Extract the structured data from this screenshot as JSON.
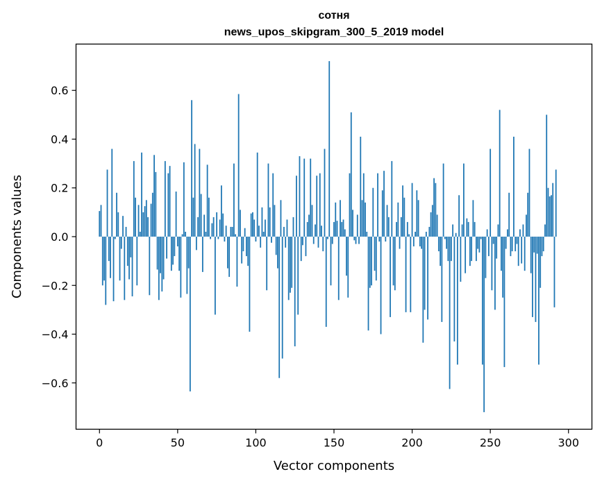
{
  "chart_data": {
    "type": "bar",
    "title": "сотня",
    "subtitle": "news_upos_skipgram_300_5_2019 model",
    "xlabel": "Vector components",
    "ylabel": "Components values",
    "xlim": [
      -15,
      315
    ],
    "ylim": [
      -0.79,
      0.79
    ],
    "xticks": [
      0,
      50,
      100,
      150,
      200,
      250,
      300
    ],
    "yticks": [
      -0.6,
      -0.4,
      -0.2,
      0.0,
      0.2,
      0.4,
      0.6
    ],
    "ytick_labels": [
      "−0.6",
      "−0.4",
      "−0.2",
      "0.0",
      "0.2",
      "0.4",
      "0.6"
    ],
    "bar_color": "#1f77b4",
    "grid": false,
    "values": [
      0.105,
      0.13,
      -0.2,
      -0.18,
      -0.28,
      0.275,
      -0.1,
      -0.17,
      0.36,
      -0.265,
      -0.01,
      0.18,
      0.1,
      -0.18,
      -0.05,
      0.085,
      -0.26,
      0.04,
      -0.12,
      -0.175,
      -0.085,
      -0.245,
      0.31,
      0.16,
      -0.2,
      0.13,
      0.02,
      0.345,
      0.1,
      0.125,
      0.15,
      0.08,
      -0.24,
      0.135,
      0.18,
      0.335,
      0.265,
      -0.135,
      -0.26,
      -0.15,
      -0.225,
      -0.175,
      0.31,
      -0.09,
      0.26,
      0.29,
      -0.14,
      -0.115,
      -0.08,
      0.185,
      -0.04,
      -0.14,
      -0.25,
      0.01,
      0.305,
      0.02,
      -0.235,
      -0.13,
      -0.635,
      0.56,
      0.16,
      0.38,
      -0.055,
      0.08,
      0.36,
      0.175,
      -0.145,
      0.09,
      0.02,
      0.295,
      0.16,
      -0.01,
      0.055,
      0.08,
      -0.32,
      0.1,
      -0.01,
      0.07,
      0.21,
      0.095,
      -0.02,
      0.045,
      -0.13,
      -0.165,
      0.04,
      0.04,
      0.3,
      0.01,
      -0.205,
      0.585,
      0.11,
      -0.11,
      -0.06,
      0.035,
      -0.08,
      -0.12,
      -0.39,
      0.095,
      0.1,
      0.07,
      -0.02,
      0.345,
      0.045,
      -0.045,
      0.12,
      0.02,
      0.07,
      -0.22,
      0.3,
      0.12,
      -0.025,
      0.26,
      0.13,
      -0.075,
      -0.13,
      -0.58,
      0.15,
      -0.5,
      0.04,
      -0.045,
      0.07,
      -0.26,
      -0.23,
      -0.21,
      0.08,
      -0.45,
      0.25,
      -0.32,
      0.33,
      -0.1,
      -0.035,
      0.32,
      -0.08,
      0.06,
      0.09,
      0.32,
      0.13,
      -0.03,
      0.05,
      0.25,
      -0.045,
      0.26,
      0.045,
      -0.06,
      0.36,
      -0.37,
      -0.01,
      0.72,
      -0.2,
      -0.03,
      0.06,
      0.14,
      0.065,
      -0.26,
      0.15,
      0.06,
      0.07,
      0.03,
      -0.16,
      -0.25,
      0.26,
      0.51,
      0.11,
      -0.015,
      -0.03,
      0.09,
      -0.03,
      0.41,
      0.15,
      0.26,
      0.14,
      0.02,
      -0.385,
      -0.21,
      -0.2,
      0.2,
      -0.14,
      -0.18,
      0.26,
      -0.02,
      -0.4,
      0.19,
      0.27,
      -0.02,
      0.13,
      0.08,
      -0.33,
      0.31,
      -0.2,
      -0.22,
      0.06,
      0.14,
      -0.05,
      0.08,
      0.21,
      0.16,
      -0.31,
      0.06,
      0.01,
      -0.31,
      0.22,
      -0.04,
      0.02,
      0.19,
      0.15,
      -0.04,
      -0.05,
      -0.435,
      -0.3,
      0.02,
      -0.34,
      0.04,
      0.1,
      0.13,
      0.24,
      0.22,
      0.09,
      -0.06,
      -0.12,
      -0.35,
      0.3,
      -0.01,
      -0.05,
      -0.1,
      -0.625,
      -0.1,
      0.05,
      -0.43,
      0.015,
      -0.525,
      0.17,
      -0.185,
      0.05,
      0.3,
      -0.15,
      0.075,
      0.06,
      -0.12,
      -0.1,
      0.15,
      0.06,
      -0.1,
      -0.05,
      -0.065,
      -0.01,
      -0.525,
      -0.72,
      -0.17,
      0.03,
      -0.08,
      0.36,
      -0.22,
      -0.03,
      -0.3,
      -0.09,
      0.05,
      0.52,
      -0.14,
      -0.25,
      -0.535,
      -0.05,
      0.03,
      0.18,
      -0.08,
      -0.06,
      0.41,
      -0.06,
      -0.03,
      -0.12,
      0.03,
      -0.11,
      0.05,
      -0.14,
      0.09,
      0.18,
      0.36,
      -0.15,
      -0.33,
      -0.065,
      -0.35,
      -0.07,
      -0.525,
      -0.21,
      -0.08,
      -0.06,
      0.05,
      0.5,
      0.2,
      0.165,
      0.17,
      0.22,
      -0.29,
      0.275
    ]
  }
}
